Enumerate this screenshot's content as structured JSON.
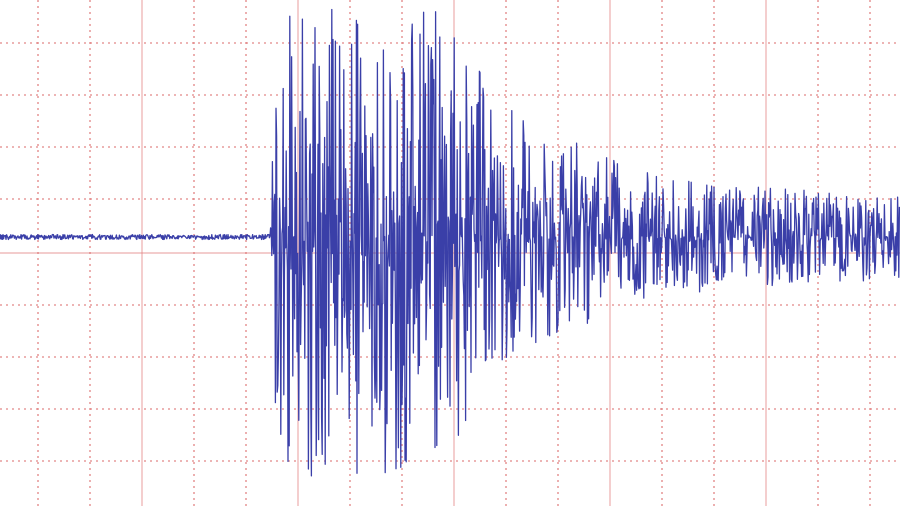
{
  "chart_data": {
    "type": "line",
    "title": "",
    "xlabel": "",
    "ylabel": "",
    "grid": true,
    "grid_color": "#e07a7a",
    "trace_color": "#3a3fa8",
    "amplitude_unit": "grid divisions",
    "envelope": [
      {
        "x_div": 0,
        "amp": 0.05
      },
      {
        "x_div": 5.2,
        "amp": 0.05
      },
      {
        "x_div": 5.3,
        "amp": 4.6
      },
      {
        "x_div": 6.6,
        "amp": 4.6
      },
      {
        "x_div": 8.4,
        "amp": 4.5
      },
      {
        "x_div": 9.6,
        "amp": 2.6
      },
      {
        "x_div": 11.5,
        "amp": 1.6
      },
      {
        "x_div": 13,
        "amp": 1.1
      },
      {
        "x_div": 17.3,
        "amp": 0.8
      }
    ]
  }
}
